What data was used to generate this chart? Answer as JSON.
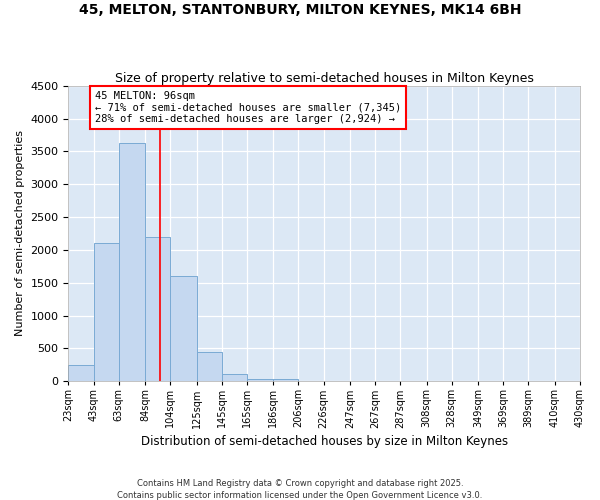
{
  "title": "45, MELTON, STANTONBURY, MILTON KEYNES, MK14 6BH",
  "subtitle": "Size of property relative to semi-detached houses in Milton Keynes",
  "xlabel": "Distribution of semi-detached houses by size in Milton Keynes",
  "ylabel": "Number of semi-detached properties",
  "bar_color": "#c5d8f0",
  "bar_edge_color": "#7aaad4",
  "plot_bg_color": "#dce8f5",
  "fig_bg_color": "#ffffff",
  "annotation_label": "45 MELTON: 96sqm",
  "annotation_line1": "← 71% of semi-detached houses are smaller (7,345)",
  "annotation_line2": "28% of semi-detached houses are larger (2,924) →",
  "redline_x": 96,
  "bin_edges": [
    23,
    43,
    63,
    84,
    104,
    125,
    145,
    165,
    186,
    206,
    226,
    247,
    267,
    287,
    308,
    328,
    349,
    369,
    389,
    410,
    430
  ],
  "bin_labels": [
    "23sqm",
    "43sqm",
    "63sqm",
    "84sqm",
    "104sqm",
    "125sqm",
    "145sqm",
    "165sqm",
    "186sqm",
    "206sqm",
    "226sqm",
    "247sqm",
    "267sqm",
    "287sqm",
    "308sqm",
    "328sqm",
    "349sqm",
    "369sqm",
    "389sqm",
    "410sqm",
    "430sqm"
  ],
  "values": [
    250,
    2100,
    3620,
    2200,
    1600,
    450,
    110,
    40,
    40,
    0,
    0,
    0,
    0,
    0,
    0,
    0,
    0,
    0,
    0,
    0
  ],
  "ylim": [
    0,
    4500
  ],
  "yticks": [
    0,
    500,
    1000,
    1500,
    2000,
    2500,
    3000,
    3500,
    4000,
    4500
  ],
  "footnote": "Contains HM Land Registry data © Crown copyright and database right 2025.\nContains public sector information licensed under the Open Government Licence v3.0.",
  "title_fontsize": 10,
  "subtitle_fontsize": 9
}
